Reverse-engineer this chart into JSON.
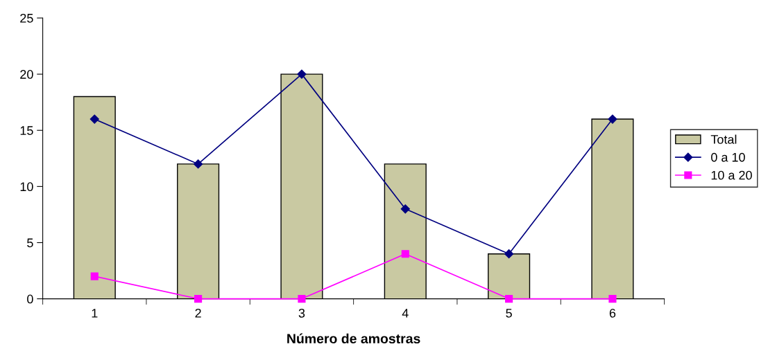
{
  "chart_data": {
    "type": "bar",
    "xlabel": "Número de amostras",
    "categories": [
      "1",
      "2",
      "3",
      "4",
      "5",
      "6"
    ],
    "series": [
      {
        "name": "Total",
        "type": "bar",
        "color": "#c9c9a2",
        "values": [
          18,
          12,
          20,
          12,
          4,
          16
        ]
      },
      {
        "name": "0 a 10",
        "type": "line",
        "marker": "diamond",
        "color": "#000080",
        "values": [
          16,
          12,
          20,
          8,
          4,
          16
        ]
      },
      {
        "name": "10 a 20",
        "type": "line",
        "marker": "square",
        "color": "#ff00ff",
        "values": [
          2,
          0,
          0,
          4,
          0,
          0
        ]
      }
    ],
    "ylim": [
      0,
      25
    ],
    "yticks": [
      0,
      5,
      10,
      15,
      20,
      25
    ],
    "legend": "right"
  }
}
